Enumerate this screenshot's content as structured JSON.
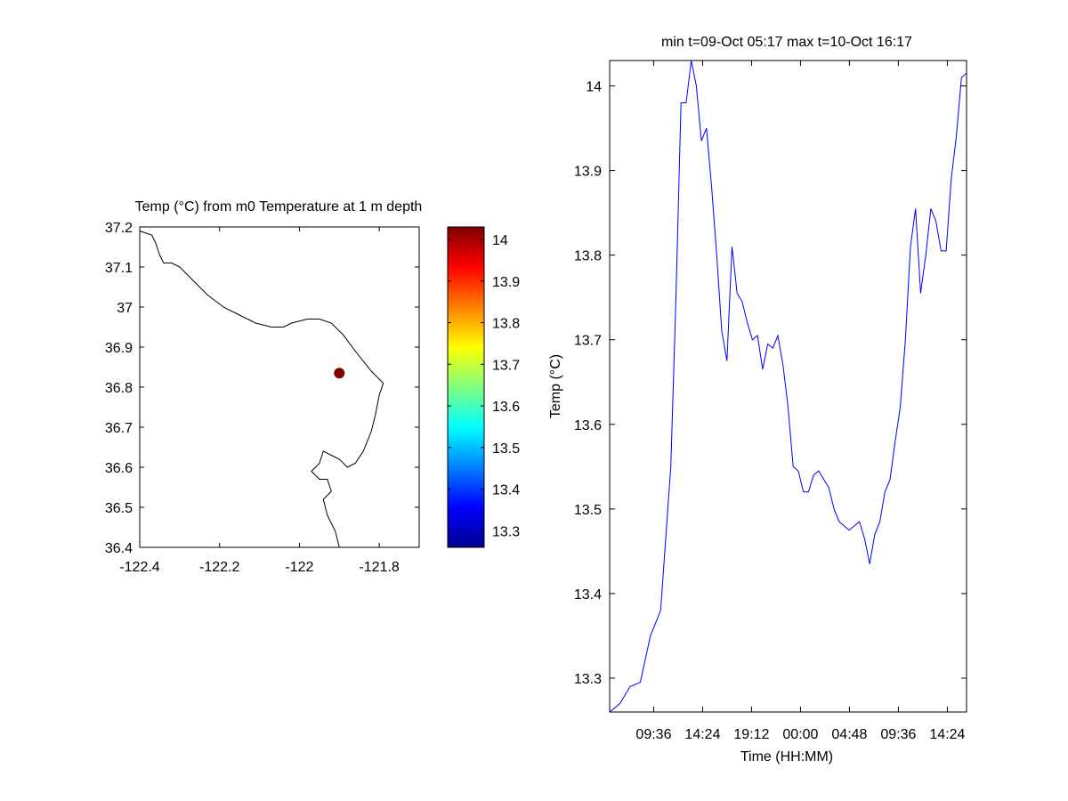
{
  "map": {
    "title": "Temp (°C) from m0 Temperature at 1 m depth",
    "xlim": [
      -122.4,
      -121.7
    ],
    "ylim": [
      36.4,
      37.2
    ],
    "xticks": [
      {
        "v": -122.4,
        "label": "-122.4"
      },
      {
        "v": -122.2,
        "label": "-122.2"
      },
      {
        "v": -122.0,
        "label": "-122"
      },
      {
        "v": -121.8,
        "label": "-121.8"
      }
    ],
    "yticks": [
      {
        "v": 37.2,
        "label": "37.2"
      },
      {
        "v": 37.1,
        "label": "37.1"
      },
      {
        "v": 37.0,
        "label": "37"
      },
      {
        "v": 36.9,
        "label": "36.9"
      },
      {
        "v": 36.8,
        "label": "36.8"
      },
      {
        "v": 36.7,
        "label": "36.7"
      },
      {
        "v": 36.6,
        "label": "36.6"
      },
      {
        "v": 36.5,
        "label": "36.5"
      },
      {
        "v": 36.4,
        "label": "36.4"
      }
    ],
    "station": {
      "lon": -121.9,
      "lat": 36.835,
      "value": 14.03,
      "color": "#800000"
    },
    "coastline": [
      [
        -122.4,
        37.19
      ],
      [
        -122.37,
        37.18
      ],
      [
        -122.36,
        37.16
      ],
      [
        -122.35,
        37.13
      ],
      [
        -122.34,
        37.11
      ],
      [
        -122.32,
        37.11
      ],
      [
        -122.3,
        37.1
      ],
      [
        -122.27,
        37.07
      ],
      [
        -122.23,
        37.03
      ],
      [
        -122.19,
        37.0
      ],
      [
        -122.15,
        36.98
      ],
      [
        -122.11,
        36.96
      ],
      [
        -122.07,
        36.95
      ],
      [
        -122.04,
        36.95
      ],
      [
        -122.02,
        36.96
      ],
      [
        -121.98,
        36.97
      ],
      [
        -121.95,
        36.97
      ],
      [
        -121.92,
        36.96
      ],
      [
        -121.89,
        36.93
      ],
      [
        -121.86,
        36.89
      ],
      [
        -121.82,
        36.84
      ],
      [
        -121.79,
        36.81
      ],
      [
        -121.8,
        36.78
      ],
      [
        -121.81,
        36.73
      ],
      [
        -121.82,
        36.69
      ],
      [
        -121.84,
        36.64
      ],
      [
        -121.86,
        36.61
      ],
      [
        -121.88,
        36.6
      ],
      [
        -121.9,
        36.62
      ],
      [
        -121.92,
        36.63
      ],
      [
        -121.94,
        36.64
      ],
      [
        -121.95,
        36.61
      ],
      [
        -121.97,
        36.59
      ],
      [
        -121.95,
        36.57
      ],
      [
        -121.93,
        36.57
      ],
      [
        -121.92,
        36.54
      ],
      [
        -121.94,
        36.52
      ],
      [
        -121.93,
        36.48
      ],
      [
        -121.91,
        36.44
      ],
      [
        -121.9,
        36.4
      ]
    ]
  },
  "colorbar": {
    "min": 13.26,
    "max": 14.03,
    "ticks": [
      {
        "v": 14.0,
        "label": "14"
      },
      {
        "v": 13.9,
        "label": "13.9"
      },
      {
        "v": 13.8,
        "label": "13.8"
      },
      {
        "v": 13.7,
        "label": "13.7"
      },
      {
        "v": 13.6,
        "label": "13.6"
      },
      {
        "v": 13.5,
        "label": "13.5"
      },
      {
        "v": 13.4,
        "label": "13.4"
      },
      {
        "v": 13.3,
        "label": "13.3"
      }
    ],
    "colors": [
      "#00008f",
      "#0000ff",
      "#0080ff",
      "#00ffff",
      "#80ff80",
      "#ffff00",
      "#ff8000",
      "#ff0000",
      "#800000"
    ]
  },
  "chart_data": {
    "type": "line",
    "title": "min t=09-Oct 05:17 max t=10-Oct 16:17",
    "xlabel": "Time (HH:MM)",
    "ylabel": "Temp (°C)",
    "xlim": [
      "09-Oct 05:17",
      "10-Oct 16:17"
    ],
    "ylim": [
      13.26,
      14.03
    ],
    "line_color": "#0000ff",
    "xticks": [
      "09:36",
      "14:24",
      "19:12",
      "00:00",
      "04:48",
      "09:36",
      "14:24"
    ],
    "yticks": [
      {
        "v": 14.0,
        "label": "14"
      },
      {
        "v": 13.9,
        "label": "13.9"
      },
      {
        "v": 13.8,
        "label": "13.8"
      },
      {
        "v": 13.7,
        "label": "13.7"
      },
      {
        "v": 13.6,
        "label": "13.6"
      },
      {
        "v": 13.5,
        "label": "13.5"
      },
      {
        "v": 13.4,
        "label": "13.4"
      },
      {
        "v": 13.3,
        "label": "13.3"
      }
    ],
    "series": [
      {
        "x": [
          "09-Oct 05:17",
          "09-Oct 06:17",
          "09-Oct 07:17",
          "09-Oct 08:17",
          "09-Oct 09:17",
          "09-Oct 10:17",
          "09-Oct 11:17",
          "09-Oct 11:47",
          "09-Oct 12:17",
          "09-Oct 12:47",
          "09-Oct 13:17",
          "09-Oct 13:47",
          "09-Oct 14:17",
          "09-Oct 14:47",
          "09-Oct 15:17",
          "09-Oct 15:47",
          "09-Oct 16:17",
          "09-Oct 16:47",
          "09-Oct 17:17",
          "09-Oct 17:47",
          "09-Oct 18:17",
          "09-Oct 18:47",
          "09-Oct 19:17",
          "09-Oct 19:47",
          "09-Oct 20:17",
          "09-Oct 20:47",
          "09-Oct 21:17",
          "09-Oct 21:47",
          "09-Oct 22:17",
          "09-Oct 22:47",
          "09-Oct 23:17",
          "09-Oct 23:47",
          "10-Oct 00:17",
          "10-Oct 00:47",
          "10-Oct 01:17",
          "10-Oct 01:47",
          "10-Oct 02:17",
          "10-Oct 02:47",
          "10-Oct 03:17",
          "10-Oct 03:47",
          "10-Oct 04:17",
          "10-Oct 04:47",
          "10-Oct 05:17",
          "10-Oct 05:47",
          "10-Oct 06:17",
          "10-Oct 06:47",
          "10-Oct 07:17",
          "10-Oct 07:47",
          "10-Oct 08:17",
          "10-Oct 08:47",
          "10-Oct 09:17",
          "10-Oct 09:47",
          "10-Oct 10:17",
          "10-Oct 10:47",
          "10-Oct 11:17",
          "10-Oct 11:47",
          "10-Oct 12:17",
          "10-Oct 12:47",
          "10-Oct 13:17",
          "10-Oct 13:47",
          "10-Oct 14:17",
          "10-Oct 14:47",
          "10-Oct 15:17",
          "10-Oct 15:47",
          "10-Oct 16:17"
        ],
        "y": [
          13.26,
          13.27,
          13.29,
          13.295,
          13.35,
          13.38,
          13.55,
          13.75,
          13.98,
          13.98,
          14.03,
          14.0,
          13.935,
          13.95,
          13.88,
          13.8,
          13.71,
          13.675,
          13.81,
          13.755,
          13.745,
          13.72,
          13.7,
          13.705,
          13.665,
          13.695,
          13.69,
          13.705,
          13.67,
          13.62,
          13.55,
          13.545,
          13.52,
          13.52,
          13.54,
          13.545,
          13.535,
          13.525,
          13.5,
          13.485,
          13.48,
          13.475,
          13.48,
          13.485,
          13.465,
          13.435,
          13.47,
          13.485,
          13.52,
          13.535,
          13.58,
          13.62,
          13.7,
          13.81,
          13.855,
          13.755,
          13.8,
          13.855,
          13.84,
          13.805,
          13.805,
          13.89,
          13.94,
          14.01,
          14.015
        ]
      }
    ]
  }
}
